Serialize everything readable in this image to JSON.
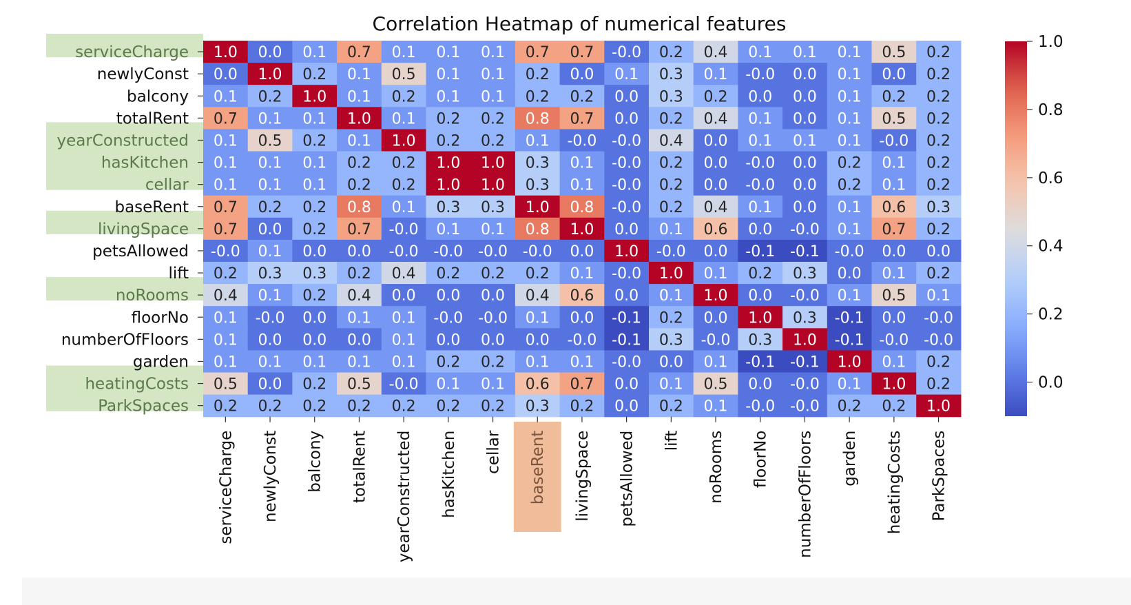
{
  "chart_data": {
    "type": "heatmap",
    "title": "Correlation Heatmap of numerical features",
    "xlabel": "",
    "ylabel": "",
    "labels": [
      "serviceCharge",
      "newlyConst",
      "balcony",
      "totalRent",
      "yearConstructed",
      "hasKitchen",
      "cellar",
      "baseRent",
      "livingSpace",
      "petsAllowed",
      "lift",
      "noRooms",
      "floorNo",
      "numberOfFloors",
      "garden",
      "heatingCosts",
      "ParkSpaces"
    ],
    "values": [
      [
        "1.0",
        "0.0",
        "0.1",
        "0.7",
        "0.1",
        "0.1",
        "0.1",
        "0.7",
        "0.7",
        "-0.0",
        "0.2",
        "0.4",
        "0.1",
        "0.1",
        "0.1",
        "0.5",
        "0.2"
      ],
      [
        "0.0",
        "1.0",
        "0.2",
        "0.1",
        "0.5",
        "0.1",
        "0.1",
        "0.2",
        "0.0",
        "0.1",
        "0.3",
        "0.1",
        "-0.0",
        "0.0",
        "0.1",
        "0.0",
        "0.2"
      ],
      [
        "0.1",
        "0.2",
        "1.0",
        "0.1",
        "0.2",
        "0.1",
        "0.1",
        "0.2",
        "0.2",
        "0.0",
        "0.3",
        "0.2",
        "0.0",
        "0.0",
        "0.1",
        "0.2",
        "0.2"
      ],
      [
        "0.7",
        "0.1",
        "0.1",
        "1.0",
        "0.1",
        "0.2",
        "0.2",
        "0.8",
        "0.7",
        "0.0",
        "0.2",
        "0.4",
        "0.1",
        "0.0",
        "0.1",
        "0.5",
        "0.2"
      ],
      [
        "0.1",
        "0.5",
        "0.2",
        "0.1",
        "1.0",
        "0.2",
        "0.2",
        "0.1",
        "-0.0",
        "-0.0",
        "0.4",
        "0.0",
        "0.1",
        "0.1",
        "0.1",
        "-0.0",
        "0.2"
      ],
      [
        "0.1",
        "0.1",
        "0.1",
        "0.2",
        "0.2",
        "1.0",
        "1.0",
        "0.3",
        "0.1",
        "-0.0",
        "0.2",
        "0.0",
        "-0.0",
        "0.0",
        "0.2",
        "0.1",
        "0.2"
      ],
      [
        "0.1",
        "0.1",
        "0.1",
        "0.2",
        "0.2",
        "1.0",
        "1.0",
        "0.3",
        "0.1",
        "-0.0",
        "0.2",
        "0.0",
        "-0.0",
        "0.0",
        "0.2",
        "0.1",
        "0.2"
      ],
      [
        "0.7",
        "0.2",
        "0.2",
        "0.8",
        "0.1",
        "0.3",
        "0.3",
        "1.0",
        "0.8",
        "-0.0",
        "0.2",
        "0.4",
        "0.1",
        "0.0",
        "0.1",
        "0.6",
        "0.3"
      ],
      [
        "0.7",
        "0.0",
        "0.2",
        "0.7",
        "-0.0",
        "0.1",
        "0.1",
        "0.8",
        "1.0",
        "0.0",
        "0.1",
        "0.6",
        "0.0",
        "-0.0",
        "0.1",
        "0.7",
        "0.2"
      ],
      [
        "-0.0",
        "0.1",
        "0.0",
        "0.0",
        "-0.0",
        "-0.0",
        "-0.0",
        "-0.0",
        "0.0",
        "1.0",
        "-0.0",
        "0.0",
        "-0.1",
        "-0.1",
        "-0.0",
        "0.0",
        "0.0"
      ],
      [
        "0.2",
        "0.3",
        "0.3",
        "0.2",
        "0.4",
        "0.2",
        "0.2",
        "0.2",
        "0.1",
        "-0.0",
        "1.0",
        "0.1",
        "0.2",
        "0.3",
        "0.0",
        "0.1",
        "0.2"
      ],
      [
        "0.4",
        "0.1",
        "0.2",
        "0.4",
        "0.0",
        "0.0",
        "0.0",
        "0.4",
        "0.6",
        "0.0",
        "0.1",
        "1.0",
        "0.0",
        "-0.0",
        "0.1",
        "0.5",
        "0.1"
      ],
      [
        "0.1",
        "-0.0",
        "0.0",
        "0.1",
        "0.1",
        "-0.0",
        "-0.0",
        "0.1",
        "0.0",
        "-0.1",
        "0.2",
        "0.0",
        "1.0",
        "0.3",
        "-0.1",
        "0.0",
        "-0.0"
      ],
      [
        "0.1",
        "0.0",
        "0.0",
        "0.0",
        "0.1",
        "0.0",
        "0.0",
        "0.0",
        "-0.0",
        "-0.1",
        "0.3",
        "-0.0",
        "0.3",
        "1.0",
        "-0.1",
        "-0.0",
        "-0.0"
      ],
      [
        "0.1",
        "0.1",
        "0.1",
        "0.1",
        "0.1",
        "0.2",
        "0.2",
        "0.1",
        "0.1",
        "-0.0",
        "0.0",
        "0.1",
        "-0.1",
        "-0.1",
        "1.0",
        "0.1",
        "0.2"
      ],
      [
        "0.5",
        "0.0",
        "0.2",
        "0.5",
        "-0.0",
        "0.1",
        "0.1",
        "0.6",
        "0.7",
        "0.0",
        "0.1",
        "0.5",
        "0.0",
        "-0.0",
        "0.1",
        "1.0",
        "0.2"
      ],
      [
        "0.2",
        "0.2",
        "0.2",
        "0.2",
        "0.2",
        "0.2",
        "0.2",
        "0.3",
        "0.2",
        "0.0",
        "0.2",
        "0.1",
        "-0.0",
        "-0.0",
        "0.2",
        "0.2",
        "1.0"
      ]
    ],
    "colormap": "coolwarm",
    "vmin": -0.1,
    "vmax": 1.0,
    "colorbar_ticks": [
      "1.0",
      "0.8",
      "0.6",
      "0.4",
      "0.2",
      "0.0"
    ],
    "highlighted_row_labels": [
      "serviceCharge",
      "yearConstructed",
      "hasKitchen",
      "cellar",
      "livingSpace",
      "noRooms",
      "heatingCosts",
      "ParkSpaces"
    ],
    "highlighted_column_labels": [
      "baseRent"
    ],
    "highlight_colors": {
      "row": "#d4e6c4",
      "column": "#f0bc99",
      "row_text": "#5d7a4c",
      "column_text": "#7a5540"
    }
  }
}
